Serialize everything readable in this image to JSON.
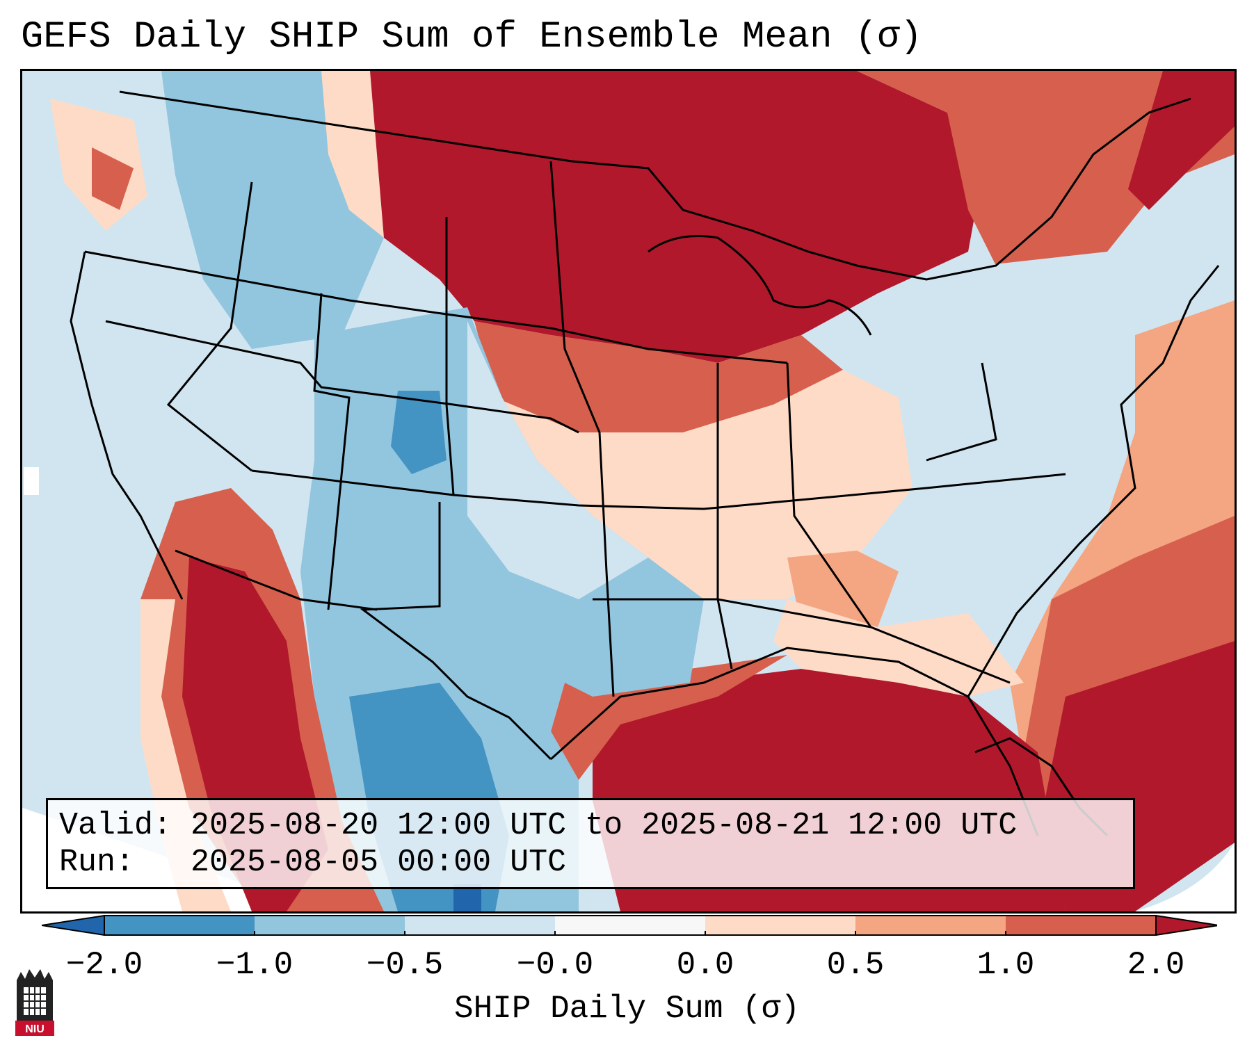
{
  "title": "GEFS Daily SHIP Sum of Ensemble Mean (σ)",
  "info": {
    "valid_label": "Valid:",
    "valid_value": "2025-08-20 12:00 UTC to 2025-08-21 12:00 UTC",
    "run_label": "Run:",
    "run_value": "2025-08-05 00:00 UTC"
  },
  "colorbar": {
    "label": "SHIP Daily Sum (σ)",
    "ticks": [
      "−2.0",
      "−1.0",
      "−0.5",
      "−0.0",
      "0.0",
      "0.5",
      "1.0",
      "2.0"
    ],
    "bins": [
      {
        "range": "< -2.0",
        "color": "#2166ac"
      },
      {
        "range": "-2.0 to -1.0",
        "color": "#4393c3"
      },
      {
        "range": "-1.0 to -0.5",
        "color": "#92c5de"
      },
      {
        "range": "-0.5 to -0.0",
        "color": "#d1e5f0"
      },
      {
        "range": "-0.0 to 0.0",
        "color": "#f7f7f7"
      },
      {
        "range": "0.0 to 0.5",
        "color": "#fddbc7"
      },
      {
        "range": "0.5 to 1.0",
        "color": "#f4a582"
      },
      {
        "range": "1.0 to 2.0",
        "color": "#d6604d"
      },
      {
        "range": "> 2.0",
        "color": "#b2182b"
      }
    ]
  },
  "logo": {
    "text": "NIU",
    "color": "#c8102e"
  }
}
